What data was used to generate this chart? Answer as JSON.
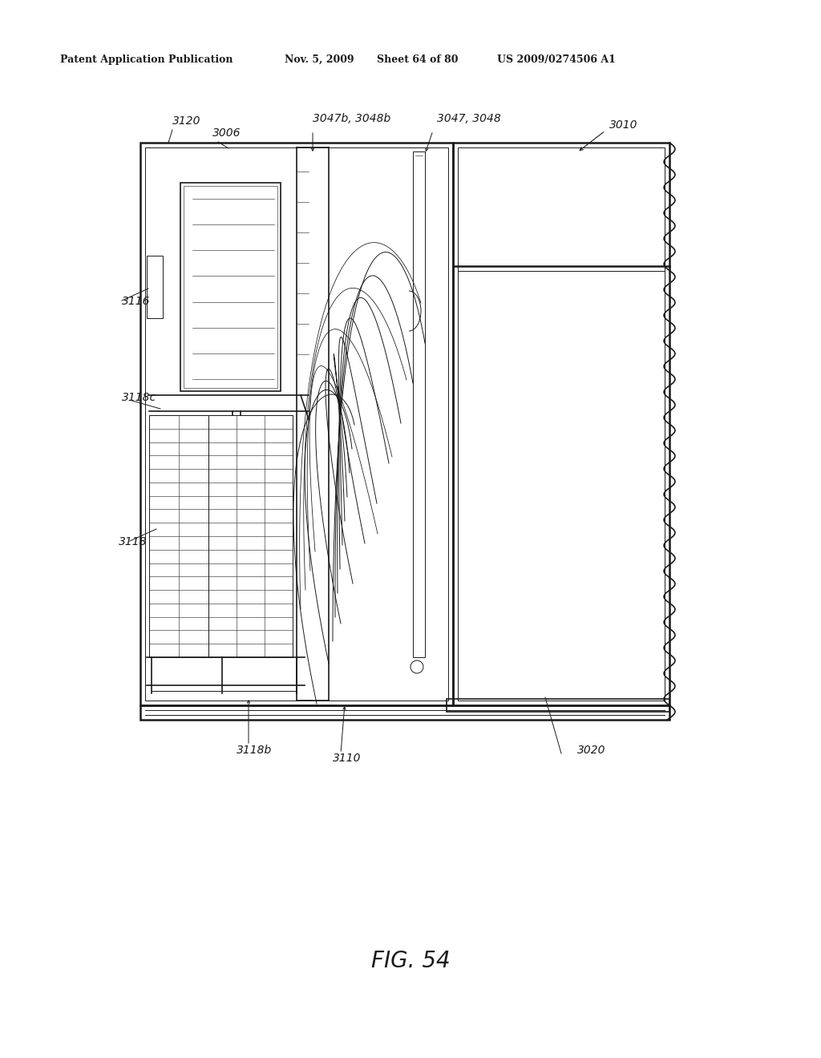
{
  "bg_color": "#ffffff",
  "line_color": "#1a1a1a",
  "header_text": "Patent Application Publication",
  "header_date": "Nov. 5, 2009",
  "header_sheet": "Sheet 64 of 80",
  "header_patent": "US 2009/0274506 A1",
  "figure_label": "FIG. 54",
  "lw_main": 1.8,
  "lw_med": 1.2,
  "lw_thin": 0.7,
  "lw_hair": 0.4
}
